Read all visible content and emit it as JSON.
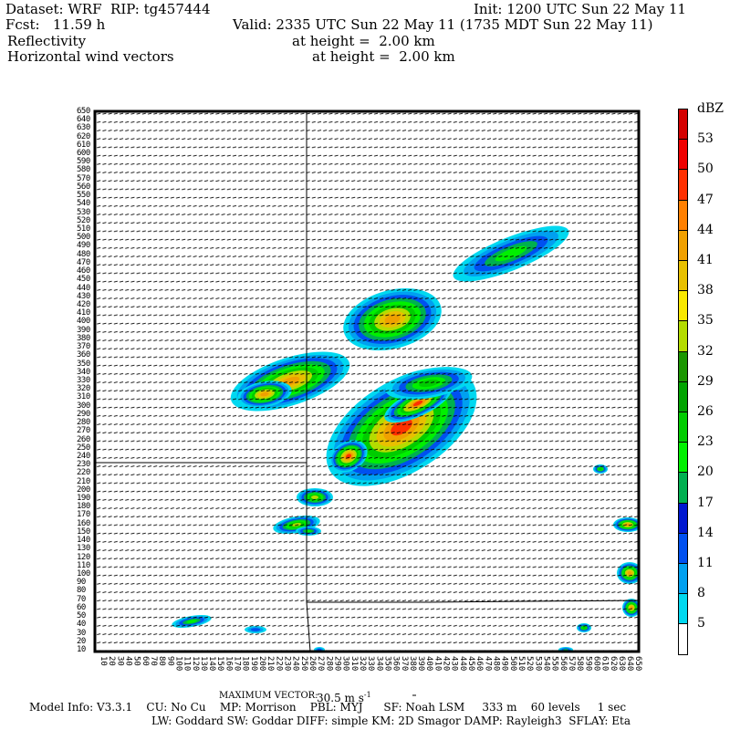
{
  "header": {
    "dataset": "Dataset: WRF  RIP: tg457444",
    "init": "Init: 1200 UTC Sun 22 May 11",
    "fcst": "Fcst:   11.59 h",
    "valid": "Valid: 2335 UTC Sun 22 May 11 (1735 MDT Sun 22 May 11)",
    "field1": "Reflectivity",
    "field1_height": "at height =  2.00 km",
    "field2": "Horizontal wind vectors",
    "field2_height": "at height =  2.00 km"
  },
  "colorbar": {
    "unit": "dBZ",
    "labels": [
      "53",
      "50",
      "47",
      "44",
      "41",
      "38",
      "35",
      "32",
      "29",
      "26",
      "23",
      "20",
      "17",
      "14",
      "11",
      "8",
      "5"
    ],
    "colors": [
      "#d40000",
      "#f00000",
      "#ff3000",
      "#ff8000",
      "#f0a000",
      "#e8c000",
      "#f8e800",
      "#b4dc00",
      "#1a9600",
      "#00a400",
      "#00cc00",
      "#00f000",
      "#00b050",
      "#0018d0",
      "#0050f0",
      "#00a0f0",
      "#00d8f0",
      "#ffffff"
    ]
  },
  "axes": {
    "y_ticks": [
      10,
      20,
      30,
      40,
      50,
      60,
      70,
      80,
      90,
      100,
      110,
      120,
      130,
      140,
      150,
      160,
      170,
      180,
      190,
      200,
      210,
      220,
      230,
      240,
      250,
      260,
      270,
      280,
      290,
      300,
      310,
      320,
      330,
      340,
      350,
      360,
      370,
      380,
      390,
      400,
      410,
      420,
      430,
      440,
      450,
      460,
      470,
      480,
      490,
      500,
      510,
      520,
      530,
      540,
      550,
      560,
      570,
      580,
      590,
      600,
      610,
      620,
      630,
      640,
      650
    ],
    "x_ticks": [
      10,
      20,
      30,
      40,
      50,
      60,
      70,
      80,
      90,
      100,
      110,
      120,
      130,
      140,
      150,
      160,
      170,
      180,
      190,
      200,
      210,
      220,
      230,
      240,
      250,
      260,
      270,
      280,
      290,
      300,
      310,
      320,
      330,
      340,
      350,
      360,
      370,
      380,
      390,
      400,
      410,
      420,
      430,
      440,
      450,
      460,
      470,
      480,
      490,
      500,
      510,
      520,
      530,
      540,
      550,
      560,
      570,
      580,
      590,
      600,
      610,
      620,
      630,
      640,
      650
    ]
  },
  "footer": {
    "max_vector_label": "MAXIMUM VECTOR:",
    "max_vector_value": "30.5 m s",
    "max_vector_exp": "-1",
    "model_line1": "Model Info: V3.3.1    CU: No Cu    MP: Morrison    PBL: MYJ      SF: Noah LSM     333 m    60 levels     1 sec",
    "model_line2": "LW: Goddard SW: Goddar DIFF: simple KM: 2D Smagor DAMP: Rayleigh3  SFLAY: Eta"
  }
}
